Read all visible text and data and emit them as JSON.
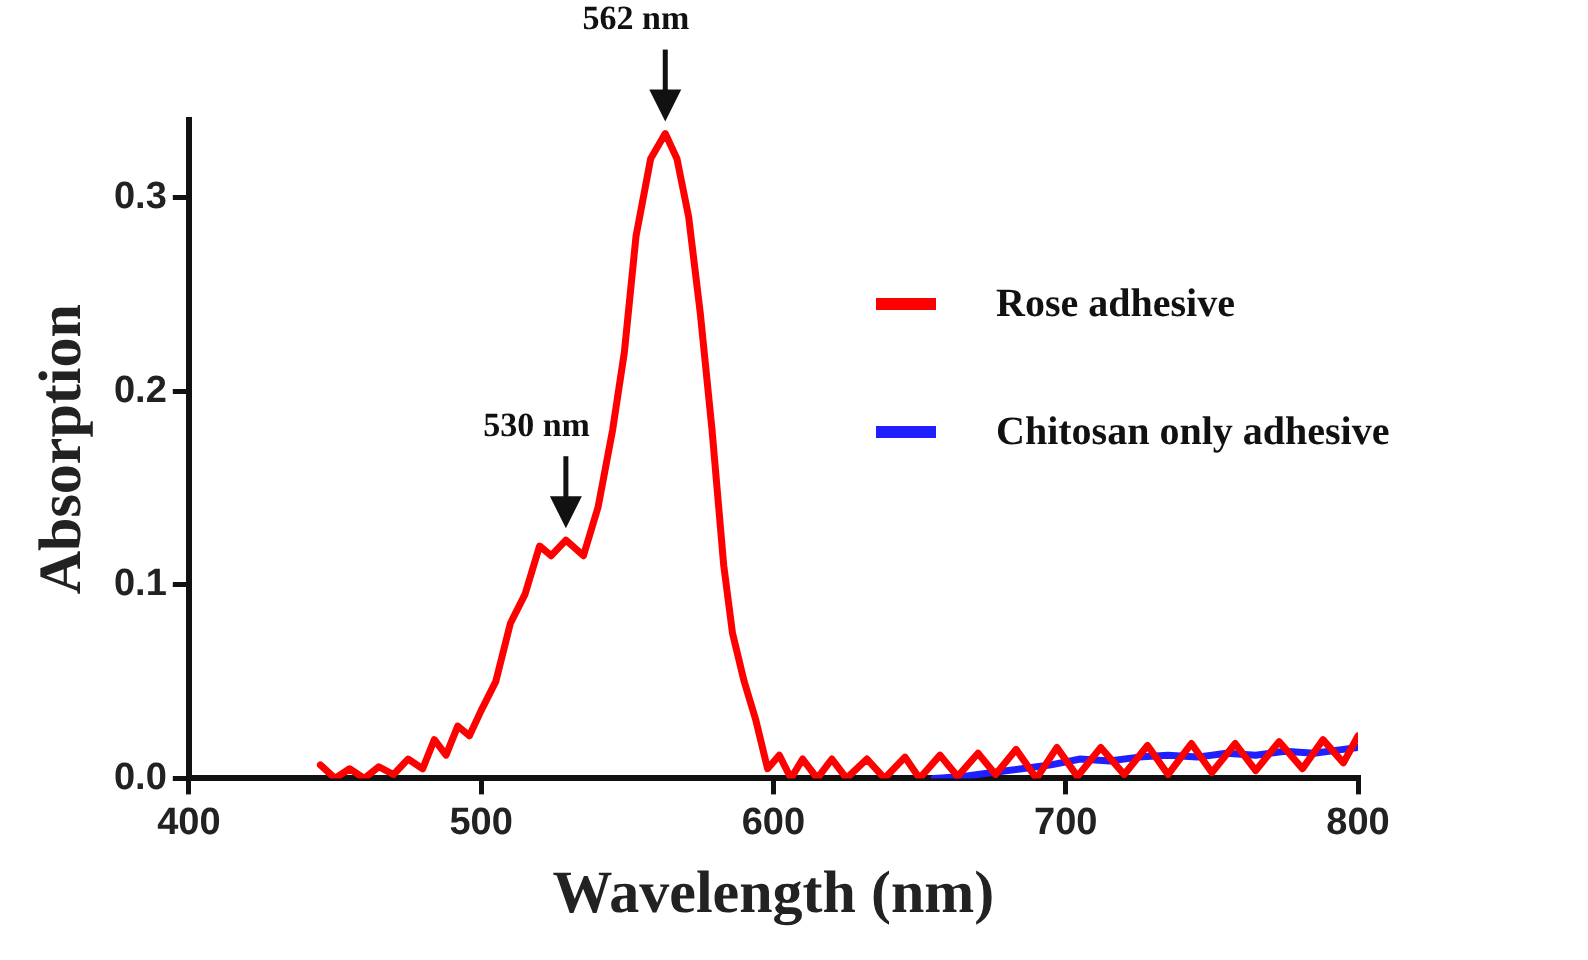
{
  "chart_data": {
    "type": "line",
    "xlabel": "Wavelength (nm)",
    "ylabel": "Absorption",
    "xlim": [
      400,
      800
    ],
    "xticks": [
      400,
      500,
      600,
      700,
      800
    ],
    "ylim": [
      0,
      0.34
    ],
    "yticks": [
      {
        "value": 0,
        "label": "0.0"
      },
      {
        "value": 0.1,
        "label": "0.1"
      },
      {
        "value": 0.2,
        "label": "0.2"
      },
      {
        "value": 0.3,
        "label": "0.3"
      }
    ],
    "grid": false,
    "legend": "top right",
    "marker": "none",
    "line_style": "solid",
    "annotations": [
      {
        "text": "562 nm",
        "x": 563,
        "y": 0.333
      },
      {
        "text": "530 nm",
        "x": 529,
        "y": 0.123
      }
    ],
    "series": [
      {
        "name": "Rose adhesive",
        "color": "#ff0000",
        "x": [
          445,
          450,
          455,
          460,
          465,
          470,
          475,
          480,
          484,
          488,
          492,
          496,
          500,
          505,
          510,
          515,
          520,
          524,
          529,
          535,
          540,
          545,
          549,
          553,
          558,
          563,
          567,
          571,
          575,
          579,
          583,
          586,
          590,
          594,
          598,
          602,
          606,
          610,
          615,
          620,
          625,
          632,
          638,
          645,
          650,
          657,
          663,
          670,
          676,
          683,
          690,
          697,
          704,
          712,
          720,
          728,
          735,
          743,
          750,
          758,
          765,
          773,
          781,
          788,
          795,
          800
        ],
        "values": [
          0.007,
          0.0,
          0.005,
          0.0,
          0.006,
          0.002,
          0.01,
          0.005,
          0.02,
          0.012,
          0.027,
          0.022,
          0.035,
          0.05,
          0.08,
          0.095,
          0.12,
          0.115,
          0.123,
          0.115,
          0.14,
          0.18,
          0.22,
          0.28,
          0.32,
          0.333,
          0.32,
          0.29,
          0.24,
          0.18,
          0.11,
          0.075,
          0.05,
          0.03,
          0.005,
          0.012,
          0.0,
          0.01,
          0.0,
          0.01,
          0.0,
          0.01,
          0.0,
          0.011,
          0.0,
          0.012,
          0.001,
          0.013,
          0.002,
          0.015,
          0.0,
          0.016,
          0.001,
          0.016,
          0.002,
          0.017,
          0.002,
          0.018,
          0.003,
          0.018,
          0.004,
          0.019,
          0.005,
          0.02,
          0.008,
          0.022
        ]
      },
      {
        "name": "Chitosan only adhesive",
        "color": "#1f1fff",
        "x": [
          655,
          665,
          675,
          685,
          695,
          705,
          715,
          725,
          735,
          745,
          755,
          765,
          775,
          785,
          795,
          800
        ],
        "values": [
          0.0,
          0.001,
          0.003,
          0.005,
          0.007,
          0.01,
          0.009,
          0.011,
          0.012,
          0.011,
          0.013,
          0.012,
          0.014,
          0.013,
          0.015,
          0.016
        ]
      }
    ]
  }
}
